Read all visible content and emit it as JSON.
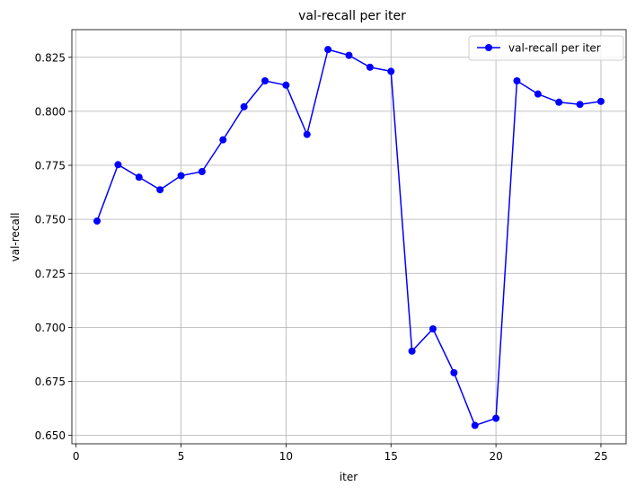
{
  "chart_data": {
    "type": "line",
    "title": "val-recall per iter",
    "xlabel": "iter",
    "ylabel": "val-recall",
    "xlim": [
      -0.2,
      26.2
    ],
    "ylim": [
      0.6461,
      0.8378
    ],
    "xticks": [
      0,
      5,
      10,
      15,
      20,
      25
    ],
    "xtick_labels": [
      "0",
      "5",
      "10",
      "15",
      "20",
      "25"
    ],
    "yticks": [
      0.65,
      0.675,
      0.7,
      0.725,
      0.75,
      0.775,
      0.8,
      0.825
    ],
    "ytick_labels": [
      "0.650",
      "0.675",
      "0.700",
      "0.725",
      "0.750",
      "0.775",
      "0.800",
      "0.825"
    ],
    "grid": true,
    "legend_position": "top-right",
    "series": [
      {
        "name": "val-recall per iter",
        "color": "#0000ff",
        "marker": "circle",
        "x": [
          1,
          2,
          3,
          4,
          5,
          6,
          7,
          8,
          9,
          10,
          11,
          12,
          13,
          14,
          15,
          16,
          17,
          18,
          19,
          20,
          21,
          22,
          23,
          24,
          25
        ],
        "y": [
          0.7492,
          0.7753,
          0.7695,
          0.7637,
          0.7702,
          0.7721,
          0.7868,
          0.8021,
          0.8141,
          0.8121,
          0.7893,
          0.8286,
          0.8259,
          0.8204,
          0.8185,
          0.689,
          0.6993,
          0.679,
          0.6546,
          0.6579,
          0.8141,
          0.808,
          0.8042,
          0.8032,
          0.8046
        ]
      }
    ]
  }
}
